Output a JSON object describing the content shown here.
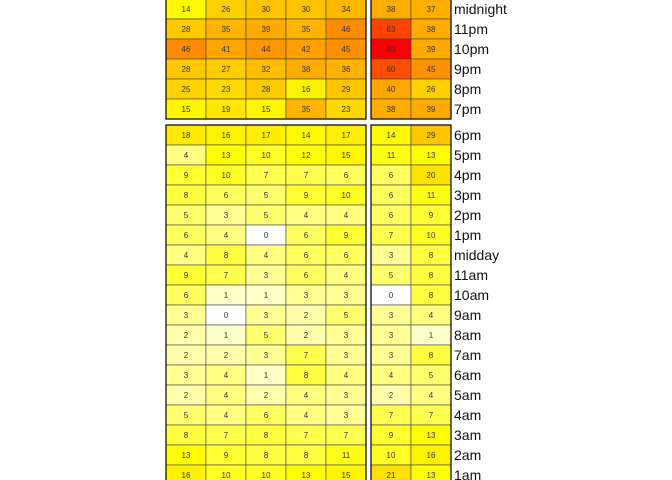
{
  "chart_data": {
    "type": "heatmap",
    "title": "",
    "xlabel": "",
    "ylabel": "",
    "color_scale": [
      "#ffffff",
      "#ffff00",
      "#ffa500",
      "#ff0000"
    ],
    "color_max": 80,
    "groups": [
      {
        "rows": [
          {
            "label": "midnight",
            "left": [
              14,
              26,
              30,
              30,
              34
            ],
            "right": [
              38,
              37
            ]
          },
          {
            "label": "11pm",
            "left": [
              28,
              35,
              39,
              35,
              46
            ],
            "right": [
              63,
              38
            ]
          },
          {
            "label": "10pm",
            "left": [
              46,
              41,
              44,
              42,
              45
            ],
            "right": [
              80,
              39
            ]
          },
          {
            "label": "9pm",
            "left": [
              28,
              27,
              32,
              38,
              36
            ],
            "right": [
              60,
              45
            ]
          },
          {
            "label": "8pm",
            "left": [
              25,
              23,
              28,
              16,
              29
            ],
            "right": [
              40,
              26
            ]
          },
          {
            "label": "7pm",
            "left": [
              15,
              19,
              15,
              35,
              23
            ],
            "right": [
              38,
              39
            ]
          }
        ]
      },
      {
        "rows": [
          {
            "label": "6pm",
            "left": [
              18,
              16,
              17,
              14,
              17
            ],
            "right": [
              14,
              29
            ]
          },
          {
            "label": "5pm",
            "left": [
              4,
              13,
              10,
              12,
              15
            ],
            "right": [
              11,
              13
            ]
          },
          {
            "label": "4pm",
            "left": [
              9,
              10,
              7,
              7,
              6
            ],
            "right": [
              6,
              20
            ]
          },
          {
            "label": "3pm",
            "left": [
              8,
              6,
              5,
              9,
              10
            ],
            "right": [
              6,
              11
            ]
          },
          {
            "label": "2pm",
            "left": [
              5,
              3,
              5,
              4,
              4
            ],
            "right": [
              6,
              9
            ]
          },
          {
            "label": "1pm",
            "left": [
              6,
              4,
              0,
              6,
              9
            ],
            "right": [
              7,
              10
            ]
          },
          {
            "label": "midday",
            "left": [
              4,
              8,
              4,
              6,
              6
            ],
            "right": [
              3,
              8
            ]
          },
          {
            "label": "11am",
            "left": [
              9,
              7,
              3,
              6,
              4
            ],
            "right": [
              5,
              8
            ]
          },
          {
            "label": "10am",
            "left": [
              6,
              1,
              1,
              3,
              3
            ],
            "right": [
              0,
              8
            ]
          },
          {
            "label": "9am",
            "left": [
              3,
              0,
              3,
              2,
              5
            ],
            "right": [
              3,
              4
            ]
          },
          {
            "label": "8am",
            "left": [
              2,
              1,
              5,
              2,
              3
            ],
            "right": [
              3,
              1
            ]
          },
          {
            "label": "7am",
            "left": [
              2,
              2,
              3,
              7,
              3
            ],
            "right": [
              3,
              8
            ]
          },
          {
            "label": "6am",
            "left": [
              3,
              4,
              1,
              8,
              4
            ],
            "right": [
              4,
              5
            ]
          },
          {
            "label": "5am",
            "left": [
              2,
              4,
              2,
              4,
              3
            ],
            "right": [
              2,
              4
            ]
          },
          {
            "label": "4am",
            "left": [
              5,
              4,
              6,
              4,
              3
            ],
            "right": [
              7,
              7
            ]
          },
          {
            "label": "3am",
            "left": [
              8,
              7,
              8,
              7,
              7
            ],
            "right": [
              9,
              13
            ]
          },
          {
            "label": "2am",
            "left": [
              13,
              9,
              8,
              8,
              11
            ],
            "right": [
              10,
              16
            ]
          },
          {
            "label": "1am",
            "left": [
              16,
              10,
              10,
              13,
              15
            ],
            "right": [
              21,
              13
            ]
          }
        ]
      }
    ]
  }
}
